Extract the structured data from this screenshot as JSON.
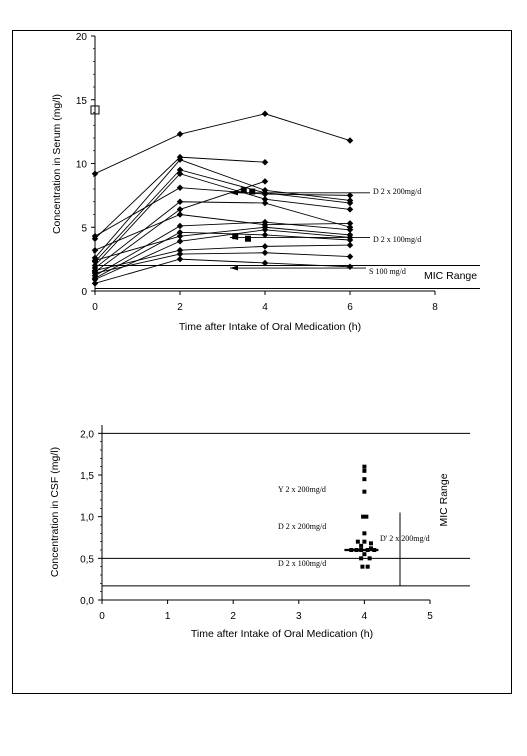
{
  "chart_data": [
    {
      "type": "line",
      "title": "",
      "xlabel": "Time after Intake of Oral Medication (h)",
      "ylabel": "Concentration in Serum (mg/l)",
      "xlim": [
        0,
        8
      ],
      "ylim": [
        0,
        20
      ],
      "xticks": [
        "0",
        "2",
        "4",
        "6",
        "8"
      ],
      "yticks": [
        "0",
        "5",
        "10",
        "15",
        "20"
      ],
      "x": [
        0,
        2,
        4,
        6
      ],
      "series": [
        {
          "values": [
            9.2,
            12.3,
            13.9,
            11.8
          ]
        },
        {
          "values": [
            4.1,
            10.5,
            10.1,
            null
          ]
        },
        {
          "values": [
            2.6,
            10.3,
            7.9,
            7.1
          ]
        },
        {
          "values": [
            2.3,
            9.5,
            7.7,
            6.9
          ]
        },
        {
          "values": [
            2.0,
            9.2,
            7.2,
            6.4
          ]
        },
        {
          "values": [
            4.3,
            8.1,
            7.6,
            7.5
          ]
        },
        {
          "values": [
            1.8,
            7.0,
            6.9,
            5.0
          ]
        },
        {
          "values": [
            1.5,
            6.4,
            8.6,
            null
          ]
        },
        {
          "values": [
            3.2,
            6.0,
            5.2,
            5.3
          ]
        },
        {
          "values": [
            1.2,
            5.1,
            5.4,
            4.8
          ]
        },
        {
          "values": [
            1.0,
            4.6,
            4.4,
            4.0
          ]
        },
        {
          "values": [
            2.4,
            4.3,
            5.0,
            4.4
          ]
        },
        {
          "values": [
            0.9,
            3.9,
            4.8,
            4.2
          ]
        },
        {
          "values": [
            1.6,
            3.2,
            3.5,
            3.6
          ]
        },
        {
          "values": [
            1.4,
            2.9,
            3.0,
            2.7
          ]
        },
        {
          "values": [
            0.6,
            2.5,
            2.2,
            1.9
          ]
        }
      ],
      "open_square": {
        "x": 0,
        "y": 14.2
      },
      "filled_squares": [
        {
          "x": 3.5,
          "y": 7.9
        },
        {
          "x": 3.7,
          "y": 7.8
        },
        {
          "x": 3.3,
          "y": 4.3
        },
        {
          "x": 3.6,
          "y": 4.1
        }
      ],
      "reference_lines": [
        {
          "label": "D 2 x 200mg/d",
          "y": 7.7
        },
        {
          "label": "D 2 x 100mg/d",
          "y": 4.2
        },
        {
          "label": "S 100 mg/d",
          "y": 1.8
        }
      ],
      "mic_range": {
        "label": "MIC Range",
        "y_from": 0.2,
        "y_to": 2.0
      }
    },
    {
      "type": "scatter",
      "title": "",
      "xlabel": "Time after Intake of Oral Medication (h)",
      "ylabel": "Concentration in CSF (mg/l)",
      "xlim": [
        0,
        5
      ],
      "ylim": [
        0,
        2.1
      ],
      "xticks": [
        "0",
        "1",
        "2",
        "3",
        "4",
        "5"
      ],
      "yticks": [
        "0,0",
        "0,5",
        "1,0",
        "1,5",
        "2,0"
      ],
      "points": [
        {
          "x": 4.0,
          "y": 1.6
        },
        {
          "x": 4.0,
          "y": 1.55
        },
        {
          "x": 4.0,
          "y": 1.45
        },
        {
          "x": 4.0,
          "y": 1.3
        },
        {
          "x": 3.98,
          "y": 1.0
        },
        {
          "x": 4.03,
          "y": 1.0
        },
        {
          "x": 4.0,
          "y": 0.8
        },
        {
          "x": 3.9,
          "y": 0.7
        },
        {
          "x": 4.0,
          "y": 0.7
        },
        {
          "x": 4.1,
          "y": 0.68
        },
        {
          "x": 3.95,
          "y": 0.65
        },
        {
          "x": 4.1,
          "y": 0.62
        },
        {
          "x": 3.8,
          "y": 0.6
        },
        {
          "x": 3.88,
          "y": 0.6
        },
        {
          "x": 3.95,
          "y": 0.6
        },
        {
          "x": 4.05,
          "y": 0.6
        },
        {
          "x": 4.15,
          "y": 0.6
        },
        {
          "x": 4.0,
          "y": 0.55
        },
        {
          "x": 3.95,
          "y": 0.5
        },
        {
          "x": 4.08,
          "y": 0.5
        },
        {
          "x": 3.97,
          "y": 0.4
        },
        {
          "x": 4.05,
          "y": 0.4
        }
      ],
      "mean_bar": {
        "x": 4.0,
        "y": 0.6
      },
      "series_labels": [
        {
          "label": "Y 2 x 200mg/d",
          "y": 1.35
        },
        {
          "label": "D 2 x 200mg/d",
          "y": 0.95
        },
        {
          "label": "D 2 x 100mg/d",
          "y": 0.45
        }
      ],
      "marker_label": "D' 2 x 200mg/d",
      "horizontal_lines": [
        2.0,
        0.5,
        0.17
      ],
      "mic_range": {
        "label": "MIC Range",
        "y_from": 0.17,
        "y_to": 1.05
      }
    }
  ]
}
